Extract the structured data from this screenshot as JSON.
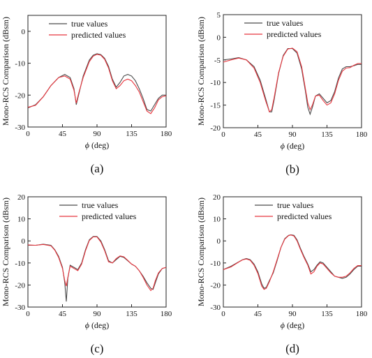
{
  "figure": {
    "ylabel": "Mono-RCS Comparison (dBsm)",
    "xlabel_symbol": "ϕ",
    "xlabel_unit": " (deg)"
  },
  "colors": {
    "true_values": "#4a4a4a",
    "predicted_values": "#e8353d"
  },
  "chart_data": [
    {
      "type": "line",
      "caption": "(a)",
      "xlim": [
        0,
        180
      ],
      "ylim": [
        -30,
        5
      ],
      "xticks": [
        0,
        45,
        90,
        135,
        180
      ],
      "yticks": [
        -30,
        -20,
        -10,
        0
      ],
      "grid": false,
      "legend": "top-left",
      "series": [
        {
          "name": "true values",
          "x": [
            0,
            10,
            20,
            30,
            40,
            48,
            55,
            60,
            63,
            66,
            72,
            80,
            85,
            90,
            95,
            100,
            105,
            110,
            115,
            120,
            125,
            130,
            135,
            140,
            145,
            150,
            155,
            160,
            165,
            170,
            175,
            180
          ],
          "y": [
            -24,
            -23,
            -20.5,
            -17,
            -14.5,
            -13.5,
            -14.5,
            -18,
            -23,
            -20,
            -14,
            -9,
            -7.5,
            -7,
            -7.3,
            -8.5,
            -11,
            -15,
            -17.5,
            -16,
            -14,
            -13.5,
            -14,
            -15.5,
            -18,
            -21,
            -24.5,
            -25,
            -23,
            -21,
            -20,
            -20
          ]
        },
        {
          "name": "predicted values",
          "x": [
            0,
            10,
            20,
            30,
            40,
            48,
            55,
            60,
            63,
            66,
            72,
            80,
            85,
            90,
            95,
            100,
            105,
            110,
            115,
            120,
            125,
            130,
            135,
            140,
            145,
            150,
            155,
            160,
            165,
            170,
            175,
            180
          ],
          "y": [
            -23.8,
            -23.2,
            -20.5,
            -17,
            -14.5,
            -14,
            -15,
            -18.5,
            -22.5,
            -19.5,
            -14.5,
            -9.5,
            -7.8,
            -7.2,
            -7.5,
            -8.8,
            -11.5,
            -15.5,
            -18,
            -17,
            -15.5,
            -15,
            -15.5,
            -17,
            -19,
            -22,
            -25,
            -25.8,
            -24,
            -21.5,
            -20.5,
            -20.2
          ]
        }
      ]
    },
    {
      "type": "line",
      "caption": "(b)",
      "xlim": [
        0,
        180
      ],
      "ylim": [
        -20,
        5
      ],
      "xticks": [
        0,
        45,
        90,
        135,
        180
      ],
      "yticks": [
        -20,
        -15,
        -10,
        -5,
        0,
        5
      ],
      "grid": false,
      "legend": "top-left",
      "series": [
        {
          "name": "true values",
          "x": [
            0,
            10,
            20,
            30,
            40,
            48,
            55,
            60,
            63,
            66,
            72,
            78,
            84,
            90,
            96,
            102,
            107,
            110,
            113,
            116,
            120,
            125,
            130,
            135,
            140,
            145,
            150,
            155,
            160,
            165,
            170,
            175,
            180
          ],
          "y": [
            -5,
            -4.8,
            -4.5,
            -5,
            -6.5,
            -9.5,
            -13.5,
            -16.5,
            -16.5,
            -14,
            -8,
            -4,
            -2.5,
            -2.5,
            -3.5,
            -7,
            -12,
            -15.5,
            -17,
            -15.5,
            -13,
            -12.5,
            -13.5,
            -14.5,
            -14,
            -12,
            -9,
            -7,
            -6.5,
            -6.5,
            -6.3,
            -6,
            -6
          ]
        },
        {
          "name": "predicted values",
          "x": [
            0,
            10,
            20,
            30,
            40,
            48,
            55,
            60,
            63,
            66,
            72,
            78,
            84,
            90,
            96,
            102,
            107,
            110,
            113,
            116,
            120,
            125,
            130,
            135,
            140,
            145,
            150,
            155,
            160,
            165,
            170,
            175,
            180
          ],
          "y": [
            -5.5,
            -5,
            -4.6,
            -5,
            -6.8,
            -10,
            -14,
            -16.5,
            -16,
            -13.5,
            -7.8,
            -4.2,
            -2.6,
            -2.4,
            -3.2,
            -6.5,
            -11.5,
            -14.5,
            -16,
            -15,
            -13,
            -12.8,
            -14,
            -15,
            -14.5,
            -12.5,
            -9.5,
            -7.5,
            -6.8,
            -6.7,
            -6.2,
            -5.8,
            -5.8
          ]
        }
      ]
    },
    {
      "type": "line",
      "caption": "(c)",
      "xlim": [
        0,
        180
      ],
      "ylim": [
        -30,
        20
      ],
      "xticks": [
        0,
        45,
        90,
        135,
        180
      ],
      "yticks": [
        -30,
        -20,
        -10,
        0,
        10,
        20
      ],
      "grid": false,
      "legend": "top-right",
      "series": [
        {
          "name": "true values",
          "x": [
            0,
            10,
            20,
            30,
            35,
            40,
            45,
            48,
            50,
            52,
            55,
            60,
            65,
            70,
            75,
            80,
            85,
            90,
            95,
            100,
            105,
            110,
            115,
            120,
            125,
            130,
            135,
            140,
            145,
            150,
            155,
            160,
            163,
            166,
            170,
            175,
            180
          ],
          "y": [
            -2,
            -2,
            -1.5,
            -2,
            -4,
            -7,
            -12,
            -19,
            -27.5,
            -17,
            -11,
            -12,
            -13,
            -10,
            -4,
            0.5,
            2,
            2,
            0,
            -4,
            -9,
            -10,
            -8.5,
            -7,
            -7.5,
            -9,
            -10.5,
            -11.5,
            -13.5,
            -16,
            -19,
            -21.5,
            -22,
            -19,
            -15,
            -12.5,
            -12
          ]
        },
        {
          "name": "predicted values",
          "x": [
            0,
            10,
            20,
            30,
            35,
            40,
            45,
            48,
            50,
            52,
            55,
            60,
            65,
            70,
            75,
            80,
            85,
            90,
            95,
            100,
            105,
            110,
            115,
            120,
            125,
            130,
            135,
            140,
            145,
            150,
            155,
            160,
            163,
            166,
            170,
            175,
            180
          ],
          "y": [
            -1.8,
            -2,
            -1.6,
            -2.2,
            -4.2,
            -7.5,
            -12.5,
            -18,
            -20.5,
            -16.5,
            -11.5,
            -12.5,
            -13.5,
            -10.5,
            -4.5,
            0.2,
            1.8,
            1.8,
            -0.5,
            -4.5,
            -9.5,
            -10,
            -8,
            -6.8,
            -7.2,
            -8.8,
            -10.5,
            -11.5,
            -13.5,
            -16.5,
            -20,
            -22.5,
            -21.5,
            -18,
            -14.5,
            -12.5,
            -12
          ]
        }
      ]
    },
    {
      "type": "line",
      "caption": "(d)",
      "xlim": [
        0,
        180
      ],
      "ylim": [
        -30,
        20
      ],
      "xticks": [
        0,
        45,
        90,
        135,
        180
      ],
      "yticks": [
        -30,
        -20,
        -10,
        0,
        10,
        20
      ],
      "grid": false,
      "legend": "top-right",
      "series": [
        {
          "name": "true values",
          "x": [
            0,
            10,
            20,
            25,
            30,
            35,
            40,
            45,
            50,
            53,
            56,
            60,
            65,
            70,
            75,
            80,
            85,
            88,
            92,
            96,
            100,
            105,
            110,
            114,
            118,
            122,
            126,
            130,
            135,
            140,
            145,
            150,
            155,
            160,
            165,
            170,
            175,
            180
          ],
          "y": [
            -13,
            -11.5,
            -9.5,
            -8.5,
            -8,
            -8.5,
            -10.5,
            -14,
            -19.5,
            -21.5,
            -21,
            -18,
            -14.5,
            -9,
            -3,
            1,
            2.5,
            2.8,
            2.5,
            0.5,
            -3,
            -7,
            -10.5,
            -14,
            -13,
            -11,
            -9.5,
            -10,
            -12,
            -14,
            -16,
            -16.5,
            -17,
            -16.5,
            -15,
            -13,
            -11.5,
            -11.5
          ]
        },
        {
          "name": "predicted values",
          "x": [
            0,
            10,
            20,
            25,
            30,
            35,
            40,
            45,
            50,
            53,
            56,
            60,
            65,
            70,
            75,
            80,
            85,
            88,
            92,
            96,
            100,
            105,
            110,
            114,
            118,
            122,
            126,
            130,
            135,
            140,
            145,
            150,
            155,
            160,
            165,
            170,
            175,
            180
          ],
          "y": [
            -13,
            -11.8,
            -9.6,
            -8.6,
            -8.2,
            -8.8,
            -11,
            -14.8,
            -20.5,
            -22,
            -21.5,
            -18.5,
            -14,
            -8.5,
            -3,
            0.8,
            2.4,
            2.7,
            2.2,
            0,
            -3.5,
            -7.5,
            -11,
            -15,
            -14,
            -11.5,
            -10,
            -10.5,
            -12.5,
            -14.5,
            -16,
            -16.5,
            -16.5,
            -16,
            -14.5,
            -12.5,
            -11.2,
            -11.2
          ]
        }
      ]
    }
  ]
}
